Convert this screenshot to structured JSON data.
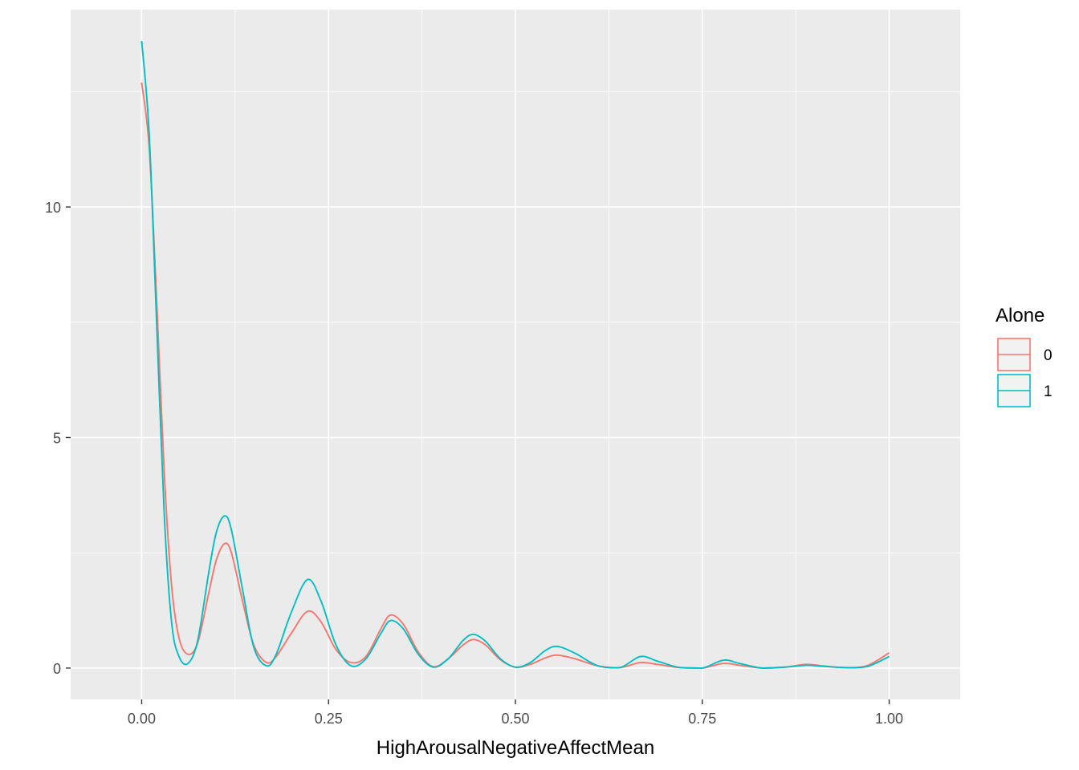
{
  "chart_data": {
    "type": "line",
    "xlabel": "HighArousalNegativeAffectMean",
    "ylabel": "",
    "xlim": [
      -0.095,
      1.095
    ],
    "ylim": [
      -0.68,
      14.28
    ],
    "x_ticks": [
      0.0,
      0.25,
      0.5,
      0.75,
      1.0
    ],
    "x_tick_labels": [
      "0.00",
      "0.25",
      "0.50",
      "0.75",
      "1.00"
    ],
    "y_ticks": [
      0,
      5,
      10
    ],
    "y_tick_labels": [
      "0",
      "5",
      "10"
    ],
    "grid": true,
    "panel_background": "#ebebeb",
    "legend": {
      "title": "Alone",
      "position": "right",
      "entries": [
        {
          "label": "0",
          "color": "#f8766d"
        },
        {
          "label": "1",
          "color": "#00bfc4"
        }
      ]
    },
    "series": [
      {
        "name": "0",
        "color": "#f8766d",
        "x": [
          0.0,
          0.01,
          0.02,
          0.03,
          0.04,
          0.05,
          0.062,
          0.075,
          0.09,
          0.1,
          0.111,
          0.12,
          0.135,
          0.15,
          0.167,
          0.18,
          0.2,
          0.222,
          0.24,
          0.26,
          0.28,
          0.3,
          0.32,
          0.333,
          0.35,
          0.37,
          0.39,
          0.41,
          0.43,
          0.444,
          0.46,
          0.48,
          0.5,
          0.52,
          0.54,
          0.556,
          0.58,
          0.61,
          0.64,
          0.667,
          0.69,
          0.72,
          0.75,
          0.778,
          0.8,
          0.83,
          0.86,
          0.889,
          0.91,
          0.94,
          0.97,
          1.0
        ],
        "y": [
          12.7,
          11.3,
          8.0,
          4.3,
          1.8,
          0.65,
          0.3,
          0.55,
          1.65,
          2.35,
          2.7,
          2.5,
          1.45,
          0.5,
          0.12,
          0.25,
          0.75,
          1.23,
          1.0,
          0.4,
          0.12,
          0.25,
          0.85,
          1.15,
          0.95,
          0.35,
          0.03,
          0.2,
          0.5,
          0.62,
          0.5,
          0.18,
          0.02,
          0.08,
          0.22,
          0.28,
          0.2,
          0.05,
          0.01,
          0.12,
          0.08,
          0.01,
          0.0,
          0.1,
          0.06,
          0.0,
          0.02,
          0.08,
          0.05,
          0.01,
          0.05,
          0.33
        ]
      },
      {
        "name": "1",
        "color": "#00bfc4",
        "x": [
          0.0,
          0.01,
          0.02,
          0.03,
          0.04,
          0.05,
          0.062,
          0.075,
          0.09,
          0.1,
          0.111,
          0.12,
          0.135,
          0.15,
          0.167,
          0.18,
          0.2,
          0.222,
          0.24,
          0.26,
          0.28,
          0.3,
          0.32,
          0.333,
          0.35,
          0.37,
          0.39,
          0.41,
          0.43,
          0.444,
          0.46,
          0.48,
          0.5,
          0.52,
          0.54,
          0.556,
          0.58,
          0.61,
          0.64,
          0.667,
          0.69,
          0.72,
          0.75,
          0.778,
          0.8,
          0.83,
          0.86,
          0.889,
          0.91,
          0.94,
          0.97,
          1.0
        ],
        "y": [
          13.6,
          11.6,
          7.5,
          3.4,
          1.0,
          0.25,
          0.1,
          0.6,
          2.1,
          2.95,
          3.3,
          3.0,
          1.7,
          0.45,
          0.05,
          0.3,
          1.2,
          1.92,
          1.45,
          0.5,
          0.05,
          0.2,
          0.75,
          1.03,
          0.85,
          0.3,
          0.02,
          0.2,
          0.6,
          0.73,
          0.58,
          0.2,
          0.02,
          0.12,
          0.38,
          0.47,
          0.32,
          0.05,
          0.01,
          0.25,
          0.15,
          0.01,
          0.0,
          0.17,
          0.1,
          0.0,
          0.02,
          0.06,
          0.04,
          0.01,
          0.03,
          0.25
        ]
      }
    ]
  }
}
